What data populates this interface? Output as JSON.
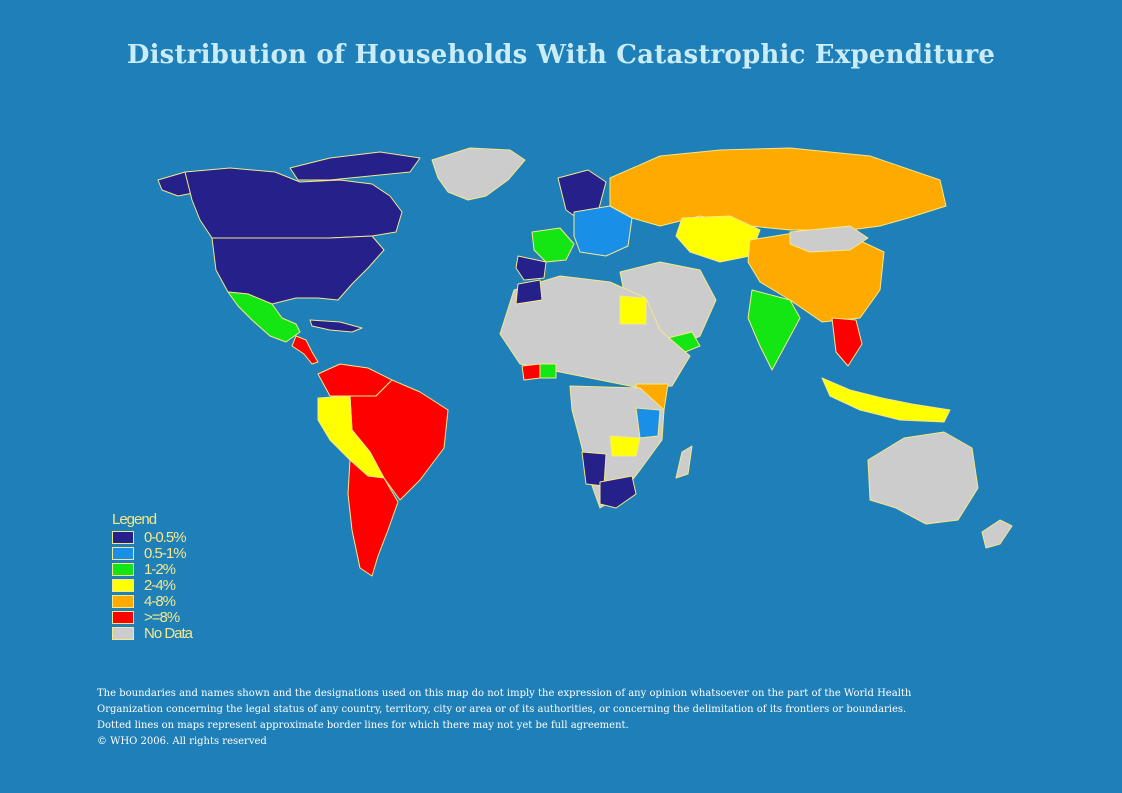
{
  "title": "Distribution of Households With Catastrophic  Expenditure",
  "legend": {
    "title": "Legend",
    "items": [
      {
        "label": "0-0.5%",
        "color": "#26208a"
      },
      {
        "label": "0.5-1%",
        "color": "#1a8fe8"
      },
      {
        "label": "1-2%",
        "color": "#14e614"
      },
      {
        "label": "2-4%",
        "color": "#ffff00"
      },
      {
        "label": "4-8%",
        "color": "#ffaa00"
      },
      {
        "label": ">=8%",
        "color": "#ff0000"
      },
      {
        "label": "No Data",
        "color": "#cccccc"
      }
    ]
  },
  "colors": {
    "ocean": "#1f7fb8",
    "border": "#f5e88a",
    "title": "#c9ecf7"
  },
  "disclaimer": {
    "line1": "The boundaries and names shown and the designations used on this map do not imply the expression of any opinion whatsoever on the part of the World Health",
    "line2": "Organization concerning the legal status of any country, territory, city or area or of its authorities, or concerning the delimitation of its frontiers or boundaries.",
    "line3": "Dotted lines on maps represent approximate border lines for which there may not yet be full agreement.",
    "line4": "© WHO 2006.  All rights reserved"
  }
}
